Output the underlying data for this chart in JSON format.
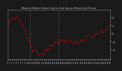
{
  "title": "Milwaukee Weather Outdoor Temp (vs) Heat Index per Minute (Last 24 Hours)",
  "line_color": "#dd0000",
  "line_style": "--",
  "line_width": 0.7,
  "background_color": "#1a1a1a",
  "plot_bg_color": "#1a1a1a",
  "vline_color": "#888888",
  "vline_style": ":",
  "vline_positions": [
    0.22,
    0.5
  ],
  "title_color": "#cccccc",
  "tick_color": "#cccccc",
  "spine_color": "#888888",
  "ylim": [
    -6.5,
    6.0
  ],
  "xlim": [
    0,
    1
  ]
}
